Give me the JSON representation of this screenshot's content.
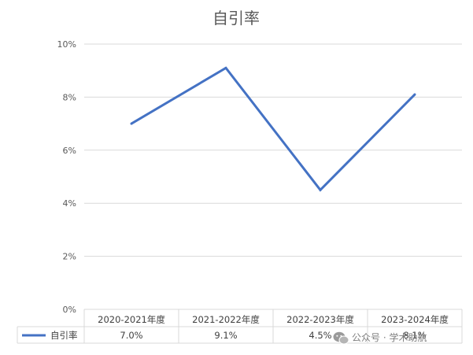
{
  "chart_data": {
    "type": "line",
    "title": "自引率",
    "categories": [
      "2020-2021年度",
      "2021-2022年度",
      "2022-2023年度",
      "2023-2024年度"
    ],
    "series": [
      {
        "name": "自引率",
        "values": [
          7.0,
          9.1,
          4.5,
          8.1
        ],
        "labels": [
          "7.0%",
          "9.1%",
          "4.5%",
          "8.1%"
        ]
      }
    ],
    "yticks": [
      "0%",
      "2%",
      "4%",
      "6%",
      "8%",
      "10%"
    ],
    "ylim": [
      0,
      10
    ],
    "grid": true,
    "legend": "data-table",
    "series_color": "#4472c4"
  },
  "watermark": {
    "text": "公众号 · 学术助航",
    "icon": "wechat-icon"
  }
}
